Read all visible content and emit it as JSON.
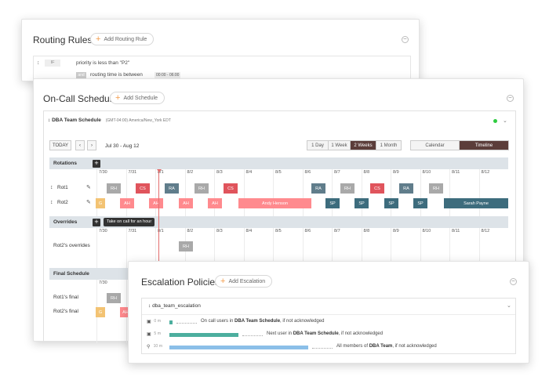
{
  "routing": {
    "title": "Routing Rules",
    "add_label": "Add Routing Rule",
    "collapse": "–",
    "rule": {
      "if_tag": "IF",
      "condition1": "priority is less than \"P2\"",
      "and_tag": "and",
      "condition2": "routing time is between",
      "time_range": "00:00 - 06:00"
    }
  },
  "oncall": {
    "title": "On-Call Schedules",
    "add_label": "Add Schedule",
    "collapse": "–",
    "schedule": {
      "name": "DBA Team Schedule",
      "timezone": "(GMT-04:00) America/New_York EDT",
      "today_label": "TODAY",
      "prev": "‹",
      "next": "›",
      "range": "Jul 30 - Aug 12",
      "ranges": [
        "1 Day",
        "1 Week",
        "2 Weeks",
        "1 Month"
      ],
      "views": [
        "Calendar",
        "Timeline"
      ],
      "dates": [
        "7/30",
        "7/31",
        "8/1",
        "8/2",
        "8/3",
        "8/4",
        "8/5",
        "8/6",
        "8/7",
        "8/8",
        "8/9",
        "8/10",
        "8/11",
        "8/12"
      ],
      "sections": {
        "rotations": "Rotations",
        "overrides": "Overrides",
        "final": "Final Schedule"
      },
      "override_tooltip": "Take on call for an hour",
      "rows": {
        "rot1": "Rot1",
        "rot2": "Rot2",
        "rot2_overrides": "Rot2's overrides",
        "rot1_final": "Rot1's final",
        "rot2_final": "Rot2's final"
      },
      "blocks": {
        "rot1": [
          "RH",
          "CS",
          "RA",
          "RH",
          "CS",
          "RA",
          "RH",
          "CS",
          "RA",
          "RH"
        ],
        "rot2": [
          "G",
          "AH",
          "AH",
          "AH",
          "AH",
          "Andy Henson",
          "SP",
          "SP",
          "SP",
          "SP",
          "Sarah Payne"
        ],
        "override": [
          "RH"
        ],
        "rot1_final": [
          "RH"
        ],
        "rot2_final": [
          "G",
          "AH"
        ]
      }
    }
  },
  "escalation": {
    "title": "Escalation Policies",
    "add_label": "Add Escalation",
    "collapse": "–",
    "policy_name": "dba_team_escalation",
    "steps": [
      {
        "minutes": "0",
        "unit": "m",
        "pre": "On call users in ",
        "target": "DBA Team Schedule",
        "post": ", if not acknowledged"
      },
      {
        "minutes": "5",
        "unit": "m",
        "pre": "Next user in ",
        "target": "DBA Team Schedule",
        "post": ", if not acknowledged"
      },
      {
        "minutes": "10",
        "unit": "m",
        "pre": "All members of ",
        "target": "DBA Team",
        "post": ", if not acknowledged"
      }
    ]
  },
  "colors": {
    "rh": "#a9a9a9",
    "cs": "#e0545c",
    "ra": "#607d8b",
    "ah": "#ff8a8e",
    "sp": "#3d6c7d",
    "g": "#f3c373",
    "timeline_active": "#5b3d3a",
    "escal_teal": "#4cae9e",
    "escal_blue": "#8bbfe8"
  }
}
